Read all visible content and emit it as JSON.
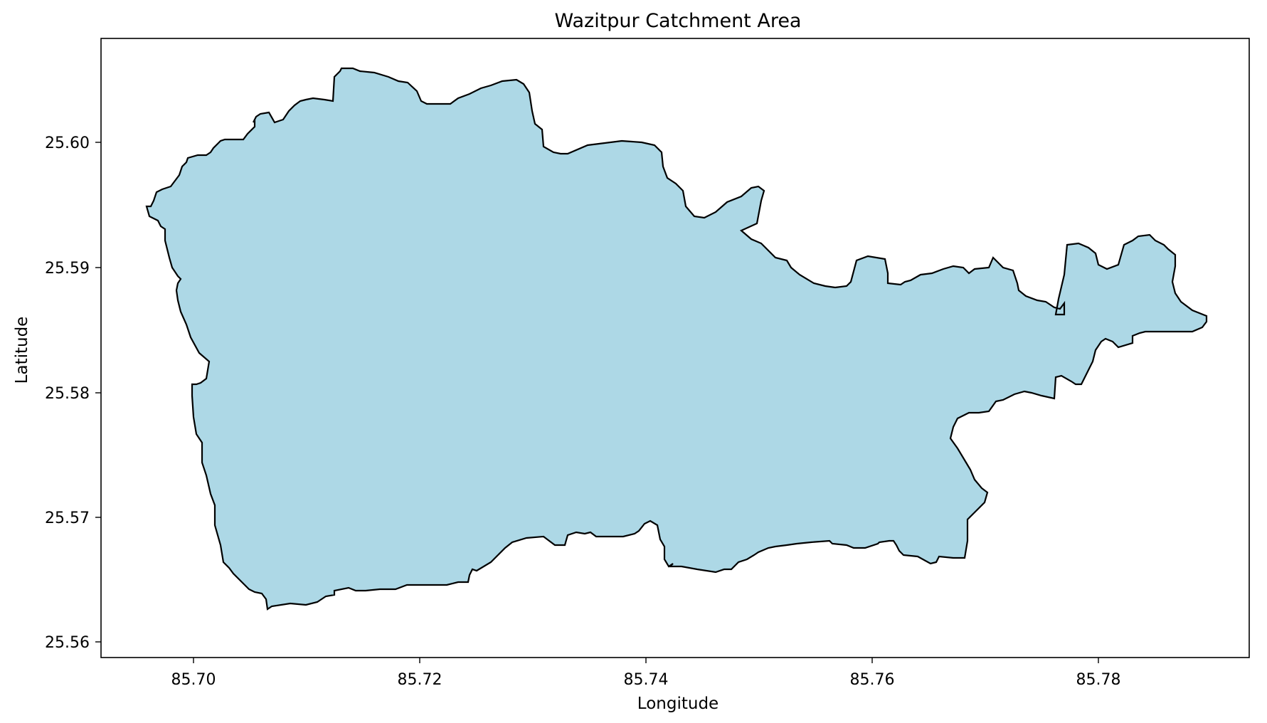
{
  "title": "Wazitpur Catchment Area",
  "xlabel": "Longitude",
  "ylabel": "Latitude",
  "x_ticks": [
    "85.70",
    "85.72",
    "85.74",
    "85.76",
    "85.78"
  ],
  "y_ticks": [
    "25.60",
    "25.59",
    "25.58",
    "25.57",
    "25.56"
  ],
  "colors": {
    "fill": "#add8e6",
    "outline": "#000000"
  }
}
